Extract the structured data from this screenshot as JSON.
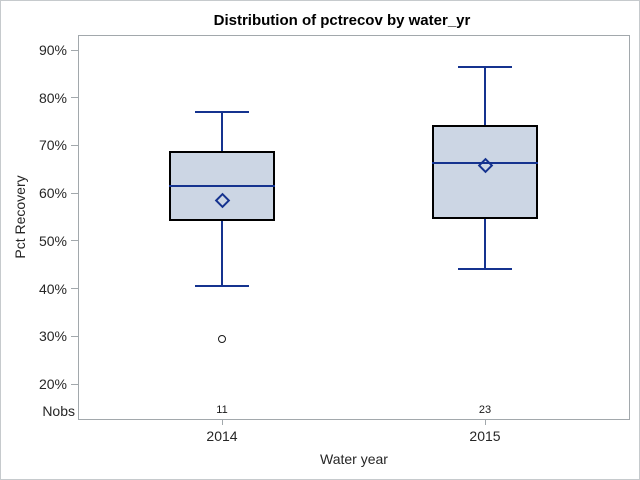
{
  "chart_data": {
    "type": "boxplot",
    "title": "Distribution of pctrecov by water_yr",
    "xlabel": "Water year",
    "ylabel": "Pct Recovery",
    "nobs_label": "Nobs",
    "y_tick_labels": [
      "90%",
      "80%",
      "70%",
      "60%",
      "50%",
      "40%",
      "30%",
      "20%"
    ],
    "y_tick_values": [
      90,
      80,
      70,
      60,
      50,
      40,
      30,
      20
    ],
    "ylim": [
      20,
      90
    ],
    "grid": false,
    "legend": false,
    "groups": [
      {
        "category": "2014",
        "nobs": "11",
        "whisker_high": 77,
        "q3": 68.8,
        "median": 61.5,
        "mean": 58.5,
        "q1": 54.2,
        "whisker_low": 40.5,
        "outliers": [
          29.5
        ]
      },
      {
        "category": "2015",
        "nobs": "23",
        "whisker_high": 86.5,
        "q3": 74.2,
        "median": 66.4,
        "mean": 65.7,
        "q1": 54.5,
        "whisker_low": 44,
        "outliers": []
      }
    ],
    "colors": {
      "box_fill": "#ccd6e4",
      "box_border": "#000000",
      "line": "#15338f",
      "frame": "#a2a8ac",
      "outlier": "#1a1a1a",
      "background": "#ffffff"
    }
  }
}
